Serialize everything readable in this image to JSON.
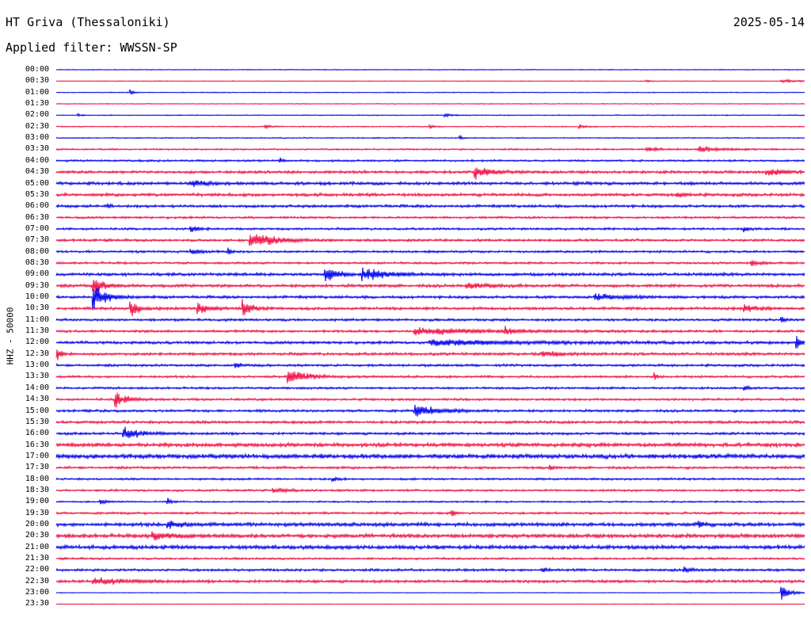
{
  "header": {
    "station_title": "HT Griva (Thessaloniki)",
    "date": "2025-05-14",
    "filter_label": "Applied filter: WWSSN-SP"
  },
  "channel_label": "HHZ - 50000",
  "colors": {
    "trace_even": "#0000ee",
    "trace_odd": "#ee1144",
    "background": "#ffffff",
    "text": "#000000"
  },
  "rows": [
    {
      "label": "00:00",
      "noise": 0.6,
      "events": []
    },
    {
      "label": "00:30",
      "noise": 0.5,
      "events": [
        {
          "t": 0.79,
          "amp": 2,
          "dur": 0.004
        },
        {
          "t": 0.97,
          "amp": 2.5,
          "dur": 0.02
        }
      ]
    },
    {
      "label": "01:00",
      "noise": 0.6,
      "events": [
        {
          "t": 0.1,
          "amp": 4,
          "dur": 0.004
        }
      ]
    },
    {
      "label": "01:30",
      "noise": 0.6,
      "events": []
    },
    {
      "label": "02:00",
      "noise": 0.7,
      "events": [
        {
          "t": 0.03,
          "amp": 2,
          "dur": 0.004
        },
        {
          "t": 0.52,
          "amp": 2,
          "dur": 0.01
        }
      ]
    },
    {
      "label": "02:30",
      "noise": 0.8,
      "events": [
        {
          "t": 0.28,
          "amp": 3,
          "dur": 0.006
        },
        {
          "t": 0.5,
          "amp": 3,
          "dur": 0.004
        },
        {
          "t": 0.7,
          "amp": 3,
          "dur": 0.006
        }
      ]
    },
    {
      "label": "03:00",
      "noise": 0.8,
      "events": [
        {
          "t": 0.54,
          "amp": 3,
          "dur": 0.004
        }
      ]
    },
    {
      "label": "03:30",
      "noise": 1.2,
      "events": [
        {
          "t": 0.79,
          "amp": 3,
          "dur": 0.02
        },
        {
          "t": 0.86,
          "amp": 4,
          "dur": 0.03
        }
      ]
    },
    {
      "label": "04:00",
      "noise": 1.4,
      "events": [
        {
          "t": 0.3,
          "amp": 4,
          "dur": 0.004
        }
      ]
    },
    {
      "label": "04:30",
      "noise": 2.0,
      "events": [
        {
          "t": 0.56,
          "amp": 9,
          "dur": 0.02
        },
        {
          "t": 0.95,
          "amp": 4,
          "dur": 0.03
        }
      ]
    },
    {
      "label": "05:00",
      "noise": 2.2,
      "events": [
        {
          "t": 0.18,
          "amp": 4,
          "dur": 0.02
        }
      ]
    },
    {
      "label": "05:30",
      "noise": 2.2,
      "events": [
        {
          "t": 0.83,
          "amp": 4,
          "dur": 0.01
        }
      ]
    },
    {
      "label": "06:00",
      "noise": 2.0,
      "events": [
        {
          "t": 0.07,
          "amp": 4,
          "dur": 0.004
        }
      ]
    },
    {
      "label": "06:30",
      "noise": 1.6,
      "events": []
    },
    {
      "label": "07:00",
      "noise": 1.6,
      "events": [
        {
          "t": 0.18,
          "amp": 5,
          "dur": 0.01
        },
        {
          "t": 0.92,
          "amp": 5,
          "dur": 0.004
        }
      ]
    },
    {
      "label": "07:30",
      "noise": 1.8,
      "events": [
        {
          "t": 0.26,
          "amp": 12,
          "dur": 0.03
        }
      ]
    },
    {
      "label": "08:00",
      "noise": 1.6,
      "events": [
        {
          "t": 0.18,
          "amp": 5,
          "dur": 0.01
        },
        {
          "t": 0.23,
          "amp": 5,
          "dur": 0.004
        }
      ]
    },
    {
      "label": "08:30",
      "noise": 1.6,
      "events": [
        {
          "t": 0.93,
          "amp": 4,
          "dur": 0.01
        }
      ]
    },
    {
      "label": "09:00",
      "noise": 2.2,
      "events": [
        {
          "t": 0.36,
          "amp": 11,
          "dur": 0.015
        },
        {
          "t": 0.41,
          "amp": 9,
          "dur": 0.03
        }
      ]
    },
    {
      "label": "09:30",
      "noise": 2.2,
      "events": [
        {
          "t": 0.05,
          "amp": 14,
          "dur": 0.012
        },
        {
          "t": 0.55,
          "amp": 4,
          "dur": 0.03
        }
      ]
    },
    {
      "label": "10:00",
      "noise": 2.0,
      "events": [
        {
          "t": 0.05,
          "amp": 18,
          "dur": 0.015
        },
        {
          "t": 0.72,
          "amp": 5,
          "dur": 0.03
        }
      ]
    },
    {
      "label": "10:30",
      "noise": 2.0,
      "events": [
        {
          "t": 0.1,
          "amp": 11,
          "dur": 0.01
        },
        {
          "t": 0.19,
          "amp": 11,
          "dur": 0.012
        },
        {
          "t": 0.25,
          "amp": 13,
          "dur": 0.01
        },
        {
          "t": 0.92,
          "amp": 5,
          "dur": 0.02
        }
      ]
    },
    {
      "label": "11:00",
      "noise": 1.8,
      "events": [
        {
          "t": 0.97,
          "amp": 5,
          "dur": 0.004
        }
      ]
    },
    {
      "label": "11:30",
      "noise": 1.8,
      "events": [
        {
          "t": 0.48,
          "amp": 5,
          "dur": 0.08
        },
        {
          "t": 0.6,
          "amp": 6,
          "dur": 0.008
        }
      ]
    },
    {
      "label": "12:00",
      "noise": 2.0,
      "events": [
        {
          "t": 0.5,
          "amp": 4,
          "dur": 0.12
        },
        {
          "t": 0.99,
          "amp": 9,
          "dur": 0.006
        }
      ]
    },
    {
      "label": "12:30",
      "noise": 2.0,
      "events": [
        {
          "t": 0.002,
          "amp": 9,
          "dur": 0.005
        },
        {
          "t": 0.65,
          "amp": 4,
          "dur": 0.02
        }
      ]
    },
    {
      "label": "13:00",
      "noise": 1.8,
      "events": [
        {
          "t": 0.24,
          "amp": 4,
          "dur": 0.006
        }
      ]
    },
    {
      "label": "13:30",
      "noise": 1.6,
      "events": [
        {
          "t": 0.31,
          "amp": 14,
          "dur": 0.02
        },
        {
          "t": 0.8,
          "amp": 5,
          "dur": 0.004
        }
      ]
    },
    {
      "label": "14:00",
      "noise": 1.6,
      "events": [
        {
          "t": 0.92,
          "amp": 4,
          "dur": 0.004
        }
      ]
    },
    {
      "label": "14:30",
      "noise": 1.6,
      "events": [
        {
          "t": 0.08,
          "amp": 11,
          "dur": 0.015
        }
      ]
    },
    {
      "label": "15:00",
      "noise": 1.8,
      "events": [
        {
          "t": 0.48,
          "amp": 8,
          "dur": 0.03
        }
      ]
    },
    {
      "label": "15:30",
      "noise": 2.0,
      "events": []
    },
    {
      "label": "16:00",
      "noise": 1.8,
      "events": [
        {
          "t": 0.09,
          "amp": 9,
          "dur": 0.02
        }
      ]
    },
    {
      "label": "16:30",
      "noise": 2.8,
      "events": []
    },
    {
      "label": "17:00",
      "noise": 3.2,
      "events": []
    },
    {
      "label": "17:30",
      "noise": 1.8,
      "events": [
        {
          "t": 0.66,
          "amp": 4,
          "dur": 0.004
        }
      ]
    },
    {
      "label": "18:00",
      "noise": 1.5,
      "events": [
        {
          "t": 0.37,
          "amp": 3,
          "dur": 0.006
        }
      ]
    },
    {
      "label": "18:30",
      "noise": 1.5,
      "events": [
        {
          "t": 0.29,
          "amp": 3,
          "dur": 0.02
        }
      ]
    },
    {
      "label": "19:00",
      "noise": 1.2,
      "events": [
        {
          "t": 0.06,
          "amp": 3,
          "dur": 0.01
        },
        {
          "t": 0.15,
          "amp": 5,
          "dur": 0.004
        }
      ]
    },
    {
      "label": "19:30",
      "noise": 1.6,
      "events": [
        {
          "t": 0.53,
          "amp": 4,
          "dur": 0.004
        }
      ]
    },
    {
      "label": "20:00",
      "noise": 2.6,
      "events": [
        {
          "t": 0.15,
          "amp": 5,
          "dur": 0.02
        },
        {
          "t": 0.86,
          "amp": 5,
          "dur": 0.006
        }
      ]
    },
    {
      "label": "20:30",
      "noise": 2.8,
      "events": [
        {
          "t": 0.13,
          "amp": 7,
          "dur": 0.02
        }
      ]
    },
    {
      "label": "21:00",
      "noise": 2.8,
      "events": []
    },
    {
      "label": "21:30",
      "noise": 1.5,
      "events": []
    },
    {
      "label": "22:00",
      "noise": 1.8,
      "events": [
        {
          "t": 0.65,
          "amp": 4,
          "dur": 0.006
        },
        {
          "t": 0.84,
          "amp": 4,
          "dur": 0.01
        }
      ]
    },
    {
      "label": "22:30",
      "noise": 2.0,
      "events": [
        {
          "t": 0.05,
          "amp": 5,
          "dur": 0.04
        }
      ]
    },
    {
      "label": "23:00",
      "noise": 0.5,
      "events": [
        {
          "t": 0.97,
          "amp": 11,
          "dur": 0.01
        }
      ]
    },
    {
      "label": "23:30",
      "noise": 0.5,
      "events": []
    }
  ]
}
